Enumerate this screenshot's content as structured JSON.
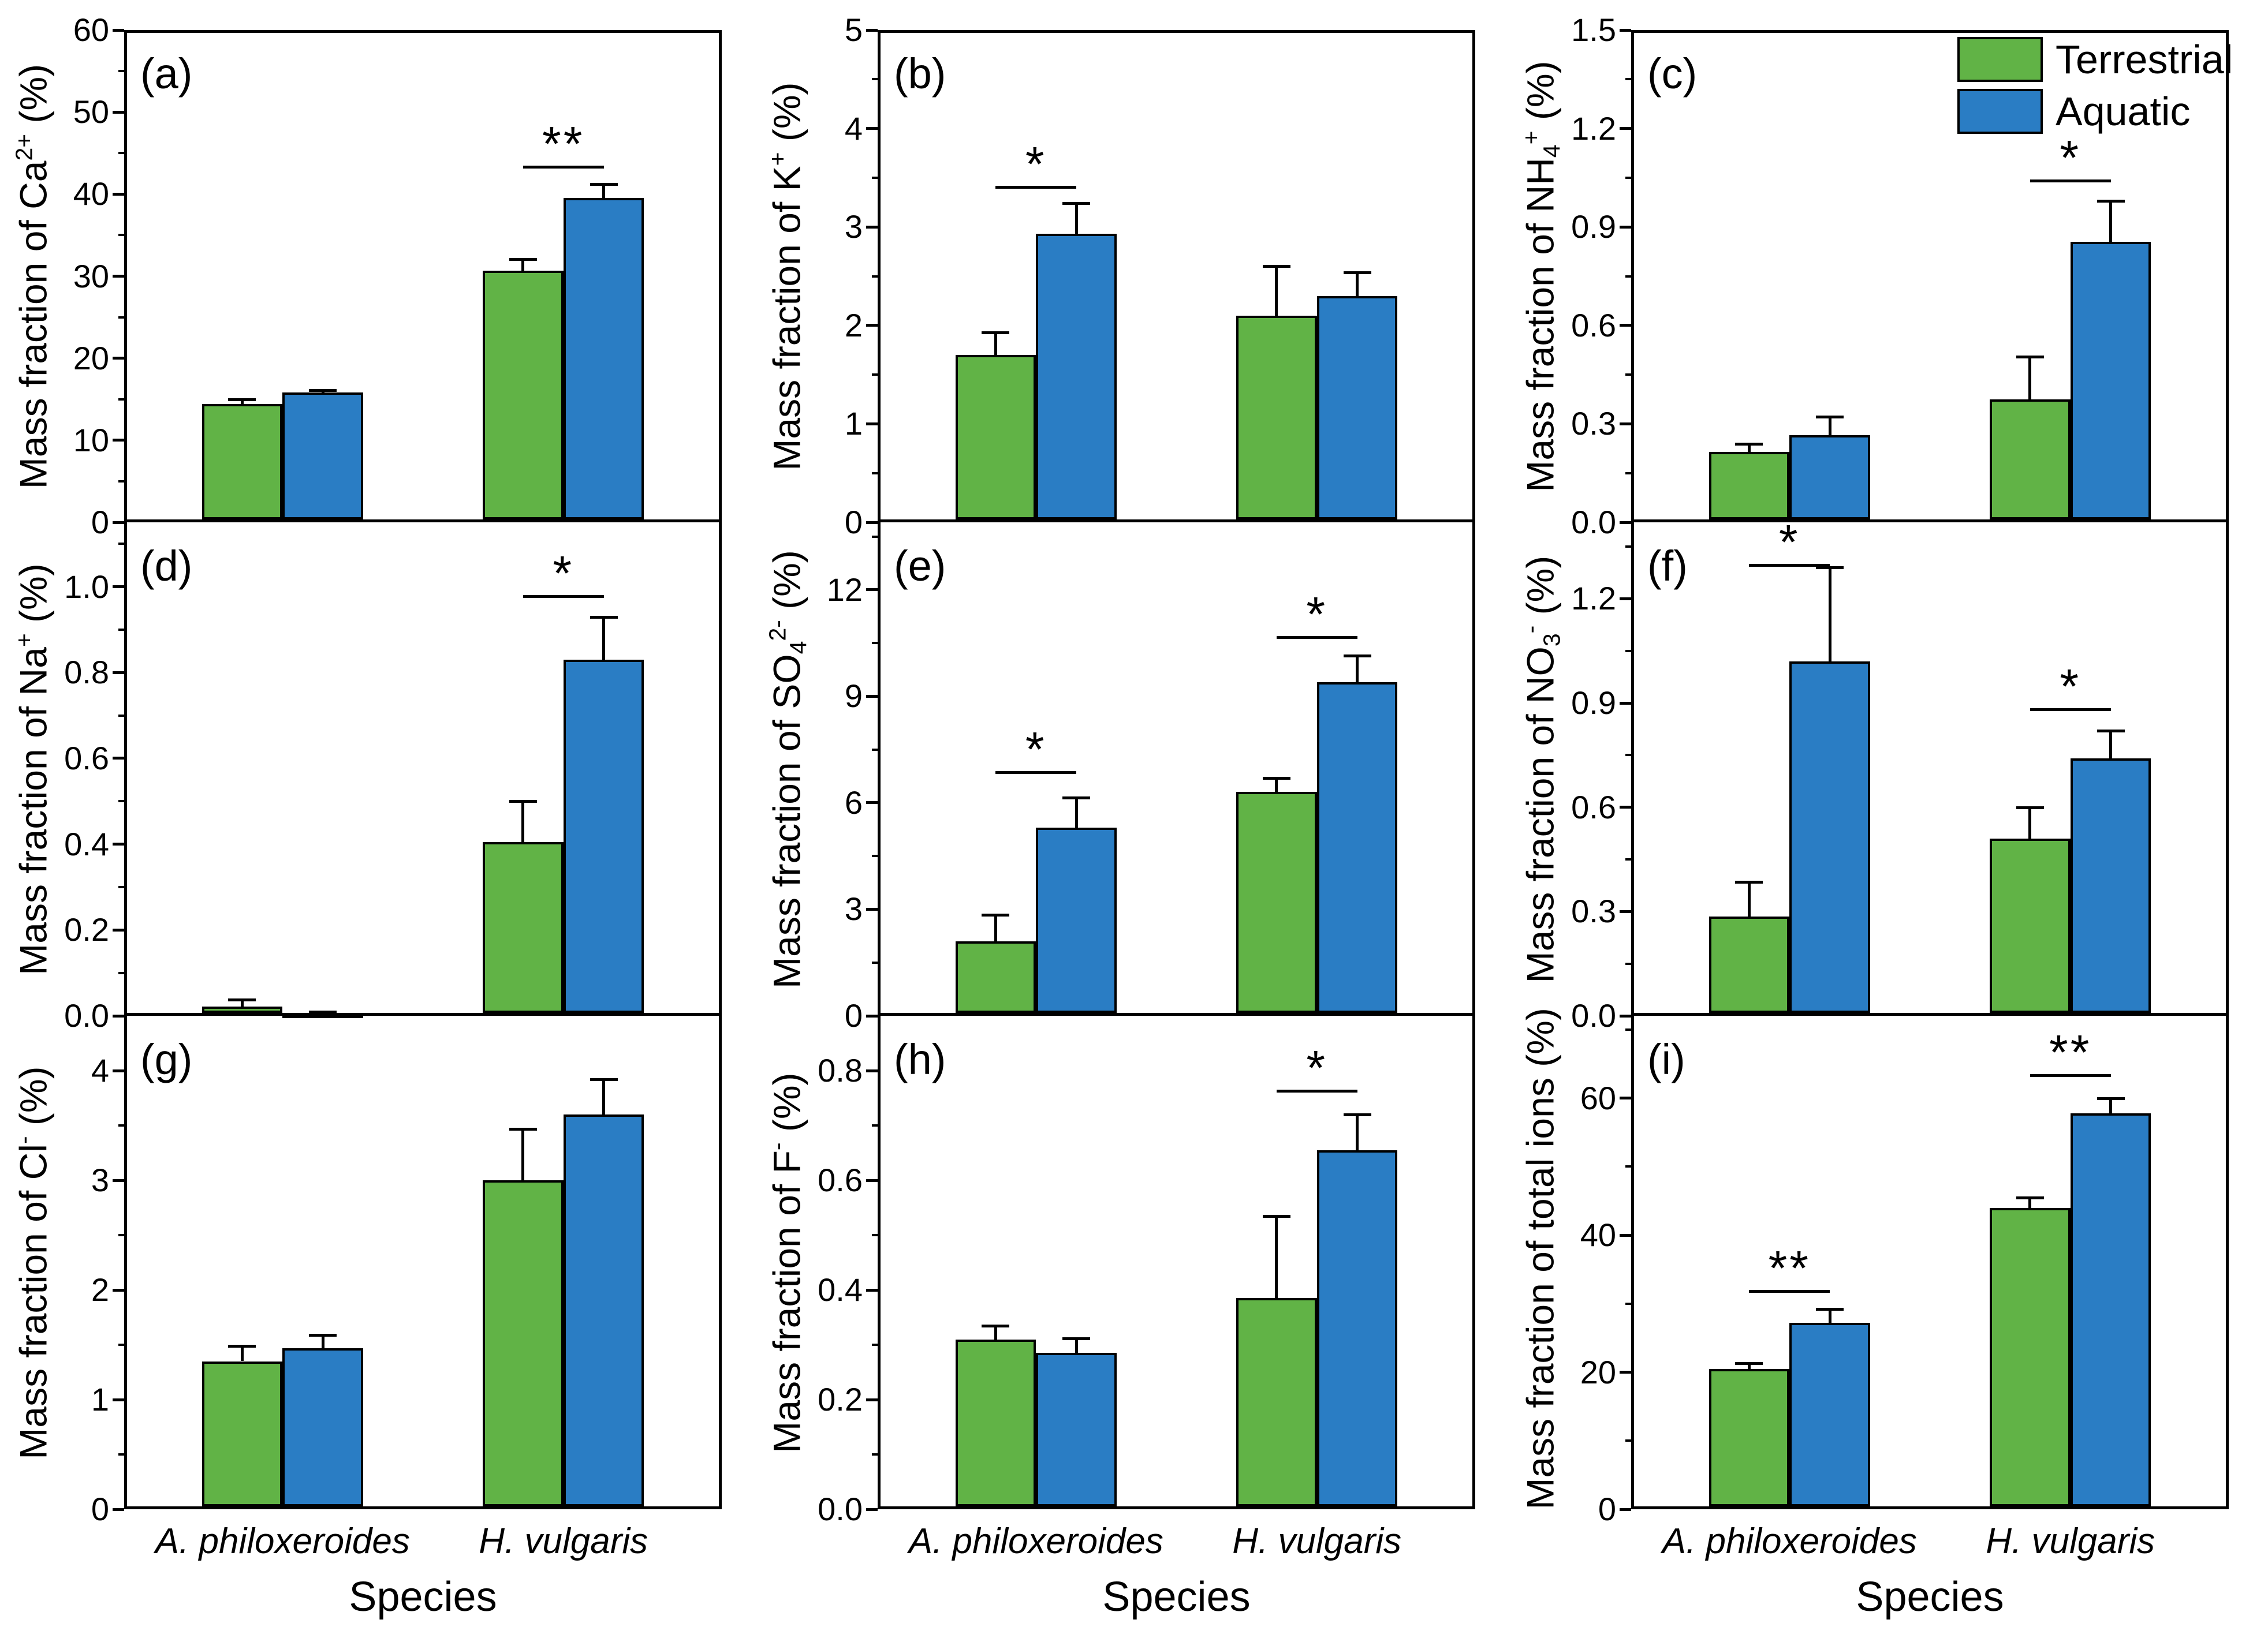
{
  "figure_title": "",
  "xlabel": "Species",
  "categories": [
    "A. philoxeroides",
    "H. vulgaris"
  ],
  "series_names": [
    "Terrestrial",
    "Aquatic"
  ],
  "colors": {
    "terrestrial": "#61b346",
    "aquatic": "#2a7dc4",
    "frame": "#000000",
    "background": "#ffffff"
  },
  "legend": {
    "position": "top-right of panel (c)",
    "items": [
      {
        "label": "Terrestrial",
        "color": "#61b346"
      },
      {
        "label": "Aquatic",
        "color": "#2a7dc4"
      }
    ]
  },
  "chart_data": [
    {
      "panel": "(a)",
      "type": "bar",
      "ion": "Ca2+",
      "ylabel": [
        {
          "t": "Mass fraction of Ca"
        },
        {
          "t": "2+",
          "s": "sup"
        },
        {
          "t": " (%)"
        }
      ],
      "ylim": [
        0,
        60
      ],
      "yticks": [
        0,
        10,
        20,
        30,
        40,
        50,
        60
      ],
      "ytick_labels": [
        "0",
        "10",
        "20",
        "30",
        "40",
        "50",
        "60"
      ],
      "minor_step": 5,
      "categories": [
        "A. philoxeroides",
        "H. vulgaris"
      ],
      "series": [
        {
          "name": "Terrestrial",
          "values": [
            14.4,
            30.7
          ],
          "errors": [
            0.6,
            1.4
          ]
        },
        {
          "name": "Aquatic",
          "values": [
            15.8,
            39.5
          ],
          "errors": [
            0.3,
            1.7
          ]
        }
      ],
      "significance": [
        {
          "category_index": 1,
          "label": "**",
          "line_y": 43.5
        }
      ]
    },
    {
      "panel": "(b)",
      "type": "bar",
      "ion": "K+",
      "ylabel": [
        {
          "t": "Mass fraction of K"
        },
        {
          "t": "+",
          "s": "sup"
        },
        {
          "t": " (%)"
        }
      ],
      "ylim": [
        0,
        5
      ],
      "yticks": [
        0,
        1,
        2,
        3,
        4,
        5
      ],
      "ytick_labels": [
        "0",
        "1",
        "2",
        "3",
        "4",
        "5"
      ],
      "minor_step": 0.5,
      "categories": [
        "A. philoxeroides",
        "H. vulgaris"
      ],
      "series": [
        {
          "name": "Terrestrial",
          "values": [
            1.7,
            2.1
          ],
          "errors": [
            0.23,
            0.5
          ]
        },
        {
          "name": "Aquatic",
          "values": [
            2.93,
            2.3
          ],
          "errors": [
            0.31,
            0.24
          ]
        }
      ],
      "significance": [
        {
          "category_index": 0,
          "label": "*",
          "line_y": 3.42
        }
      ]
    },
    {
      "panel": "(c)",
      "type": "bar",
      "ion": "NH4+",
      "ylabel": [
        {
          "t": "Mass fraction of NH"
        },
        {
          "t": "4",
          "s": "sub"
        },
        {
          "t": "+",
          "s": "sup"
        },
        {
          "t": " (%)"
        }
      ],
      "ylim": [
        0,
        1.5
      ],
      "yticks": [
        0,
        0.3,
        0.6,
        0.9,
        1.2,
        1.5
      ],
      "ytick_labels": [
        "0.0",
        "0.3",
        "0.6",
        "0.9",
        "1.2",
        "1.5"
      ],
      "minor_step": 0.15,
      "categories": [
        "A. philoxeroides",
        "H. vulgaris"
      ],
      "series": [
        {
          "name": "Terrestrial",
          "values": [
            0.215,
            0.375
          ],
          "errors": [
            0.025,
            0.13
          ]
        },
        {
          "name": "Aquatic",
          "values": [
            0.265,
            0.855
          ],
          "errors": [
            0.057,
            0.125
          ]
        }
      ],
      "significance": [
        {
          "category_index": 1,
          "label": "*",
          "line_y": 1.045
        }
      ]
    },
    {
      "panel": "(d)",
      "type": "bar",
      "ion": "Na+",
      "ylabel": [
        {
          "t": "Mass fraction of Na"
        },
        {
          "t": "+",
          "s": "sup"
        },
        {
          "t": " (%)"
        }
      ],
      "ylim": [
        0,
        1.15
      ],
      "yticks": [
        0,
        0.2,
        0.4,
        0.6,
        0.8,
        1.0
      ],
      "ytick_labels": [
        "0.0",
        "0.2",
        "0.4",
        "0.6",
        "0.8",
        "1.0"
      ],
      "minor_step": 0.1,
      "categories": [
        "A. philoxeroides",
        "H. vulgaris"
      ],
      "series": [
        {
          "name": "Terrestrial",
          "values": [
            0.022,
            0.405
          ],
          "errors": [
            0.016,
            0.095
          ]
        },
        {
          "name": "Aquatic",
          "values": [
            0.006,
            0.83
          ],
          "errors": [
            0.004,
            0.1
          ]
        }
      ],
      "significance": [
        {
          "category_index": 1,
          "label": "*",
          "line_y": 0.98
        }
      ]
    },
    {
      "panel": "(e)",
      "type": "bar",
      "ion": "SO42-",
      "ylabel": [
        {
          "t": "Mass fraction of SO"
        },
        {
          "t": "4",
          "s": "sub"
        },
        {
          "t": "2-",
          "s": "sup"
        },
        {
          "t": " (%)"
        }
      ],
      "ylim": [
        0,
        13.9
      ],
      "yticks": [
        0,
        3,
        6,
        9,
        12
      ],
      "ytick_labels": [
        "0",
        "3",
        "6",
        "9",
        "12"
      ],
      "minor_step": 1.5,
      "categories": [
        "A. philoxeroides",
        "H. vulgaris"
      ],
      "series": [
        {
          "name": "Terrestrial",
          "values": [
            2.1,
            6.3
          ],
          "errors": [
            0.75,
            0.4
          ]
        },
        {
          "name": "Aquatic",
          "values": [
            5.3,
            9.4
          ],
          "errors": [
            0.85,
            0.75
          ]
        }
      ],
      "significance": [
        {
          "category_index": 0,
          "label": "*",
          "line_y": 6.9
        },
        {
          "category_index": 1,
          "label": "*",
          "line_y": 10.7
        }
      ]
    },
    {
      "panel": "(f)",
      "type": "bar",
      "ion": "NO3-",
      "ylabel": [
        {
          "t": "Mass fraction of NO"
        },
        {
          "t": "3",
          "s": "sub"
        },
        {
          "t": "-",
          "s": "sup"
        },
        {
          "t": " (%)"
        }
      ],
      "ylim": [
        0,
        1.42
      ],
      "yticks": [
        0,
        0.3,
        0.6,
        0.9,
        1.2
      ],
      "ytick_labels": [
        "0.0",
        "0.3",
        "0.6",
        "0.9",
        "1.2"
      ],
      "minor_step": 0.15,
      "categories": [
        "A. philoxeroides",
        "H. vulgaris"
      ],
      "series": [
        {
          "name": "Terrestrial",
          "values": [
            0.285,
            0.51
          ],
          "errors": [
            0.1,
            0.09
          ]
        },
        {
          "name": "Aquatic",
          "values": [
            1.02,
            0.74
          ],
          "errors": [
            0.27,
            0.08
          ]
        }
      ],
      "significance": [
        {
          "category_index": 0,
          "label": "*",
          "line_y": 1.3
        },
        {
          "category_index": 1,
          "label": "*",
          "line_y": 0.885
        }
      ]
    },
    {
      "panel": "(g)",
      "type": "bar",
      "ion": "Cl-",
      "ylabel": [
        {
          "t": "Mass fraction of Cl"
        },
        {
          "t": "-",
          "s": "sup"
        },
        {
          "t": " (%)"
        }
      ],
      "ylim": [
        0,
        4.5
      ],
      "yticks": [
        0,
        1,
        2,
        3,
        4
      ],
      "ytick_labels": [
        "0",
        "1",
        "2",
        "3",
        "4"
      ],
      "minor_step": 0.5,
      "categories": [
        "A. philoxeroides",
        "H. vulgaris"
      ],
      "series": [
        {
          "name": "Terrestrial",
          "values": [
            1.35,
            3.0
          ],
          "errors": [
            0.14,
            0.47
          ]
        },
        {
          "name": "Aquatic",
          "values": [
            1.47,
            3.6
          ],
          "errors": [
            0.12,
            0.32
          ]
        }
      ],
      "significance": []
    },
    {
      "panel": "(h)",
      "type": "bar",
      "ion": "F-",
      "ylabel": [
        {
          "t": "Mass fraction of F"
        },
        {
          "t": "-",
          "s": "sup"
        },
        {
          "t": " (%)"
        }
      ],
      "ylim": [
        0,
        0.9
      ],
      "yticks": [
        0,
        0.2,
        0.4,
        0.6,
        0.8
      ],
      "ytick_labels": [
        "0.0",
        "0.2",
        "0.4",
        "0.6",
        "0.8"
      ],
      "minor_step": 0.1,
      "categories": [
        "A. philoxeroides",
        "H. vulgaris"
      ],
      "series": [
        {
          "name": "Terrestrial",
          "values": [
            0.31,
            0.385
          ],
          "errors": [
            0.025,
            0.15
          ]
        },
        {
          "name": "Aquatic",
          "values": [
            0.285,
            0.655
          ],
          "errors": [
            0.027,
            0.065
          ]
        }
      ],
      "significance": [
        {
          "category_index": 1,
          "label": "*",
          "line_y": 0.765
        }
      ]
    },
    {
      "panel": "(i)",
      "type": "bar",
      "ion": "total ions",
      "ylabel": [
        {
          "t": "Mass fraction of total ions (%)"
        }
      ],
      "ylim": [
        0,
        72
      ],
      "yticks": [
        0,
        20,
        40,
        60
      ],
      "ytick_labels": [
        "0",
        "20",
        "40",
        "60"
      ],
      "minor_step": 10,
      "categories": [
        "A. philoxeroides",
        "H. vulgaris"
      ],
      "series": [
        {
          "name": "Terrestrial",
          "values": [
            20.5,
            44.0
          ],
          "errors": [
            0.8,
            1.5
          ]
        },
        {
          "name": "Aquatic",
          "values": [
            27.2,
            57.8
          ],
          "errors": [
            2.0,
            2.2
          ]
        }
      ],
      "significance": [
        {
          "category_index": 0,
          "label": "**",
          "line_y": 32
        },
        {
          "category_index": 1,
          "label": "**",
          "line_y": 63.5
        }
      ]
    }
  ]
}
